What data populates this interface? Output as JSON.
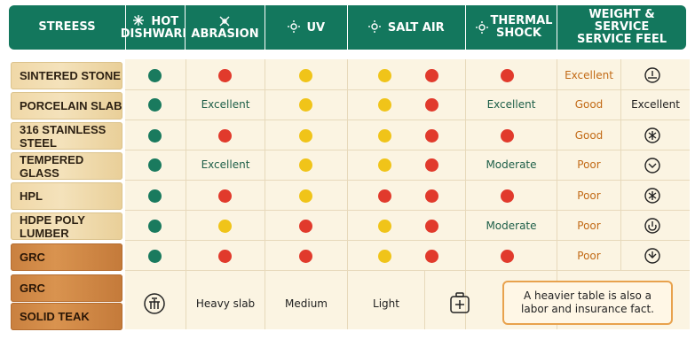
{
  "columns": [
    {
      "label": "STREESS",
      "icon": ""
    },
    {
      "label": "HOT DISHWARE",
      "icon": "snowflake-sun-icon"
    },
    {
      "label": "ABRASION",
      "icon": "abrasion-icon"
    },
    {
      "label": "UV",
      "icon": "sun-icon"
    },
    {
      "label": "SALT AIR",
      "icon": "sun-icon"
    },
    {
      "label": "THERMAL SHOCK",
      "icon": "sun-icon"
    },
    {
      "label": "WEIGHT & SERVICE SERVICE FEEL",
      "icon": ""
    }
  ],
  "rows": [
    {
      "label": "SINTERED STONE",
      "cells": [
        "green",
        "red",
        "yellow",
        "yellow red",
        "red",
        "Excellent",
        "gauge-icon"
      ]
    },
    {
      "label": "PORCELAIN SLAB",
      "cells": [
        "green",
        "Excellent",
        "yellow",
        "yellow red",
        "Excellent",
        "Good",
        "Excellent"
      ]
    },
    {
      "label": "316 STAINLESS STEEL",
      "cells": [
        "green",
        "red",
        "yellow",
        "yellow red",
        "red",
        "Good",
        "sparkle-icon"
      ]
    },
    {
      "label": "TEMPERED GLASS",
      "cells": [
        "green",
        "Excellent",
        "yellow",
        "yellow red",
        "Moderate",
        "Poor",
        "chevron-circle-icon"
      ]
    },
    {
      "label": "HPL",
      "cells": [
        "green",
        "red",
        "yellow",
        "red red",
        "red",
        "Poor",
        "sparkle-icon"
      ]
    },
    {
      "label": "HDPE POLY LUMBER",
      "cells": [
        "green",
        "yellow",
        "red",
        "yellow red",
        "Moderate",
        "Poor",
        "power-icon"
      ]
    },
    {
      "label": "GRC",
      "cells": [
        "green",
        "red",
        "red",
        "yellow red",
        "red",
        "Poor",
        "chevron-circle-icon"
      ]
    },
    {
      "label": "GRC",
      "cells": []
    },
    {
      "label": "SOLID TEAK",
      "cells": []
    }
  ],
  "weight_row": {
    "light_icon": "weight-icon",
    "heavy": "Heavy slab",
    "medium": "Medium",
    "light": "Light",
    "box_icon": "box-icon"
  },
  "note": "A heavier table is also a labor and insurance fact.",
  "colors": {
    "header": "#13775d",
    "green": "#1a7a5e",
    "red": "#e13a2c",
    "yellow": "#f0c419",
    "panel": "#fbf4e2",
    "note_border": "#e8a24d"
  }
}
